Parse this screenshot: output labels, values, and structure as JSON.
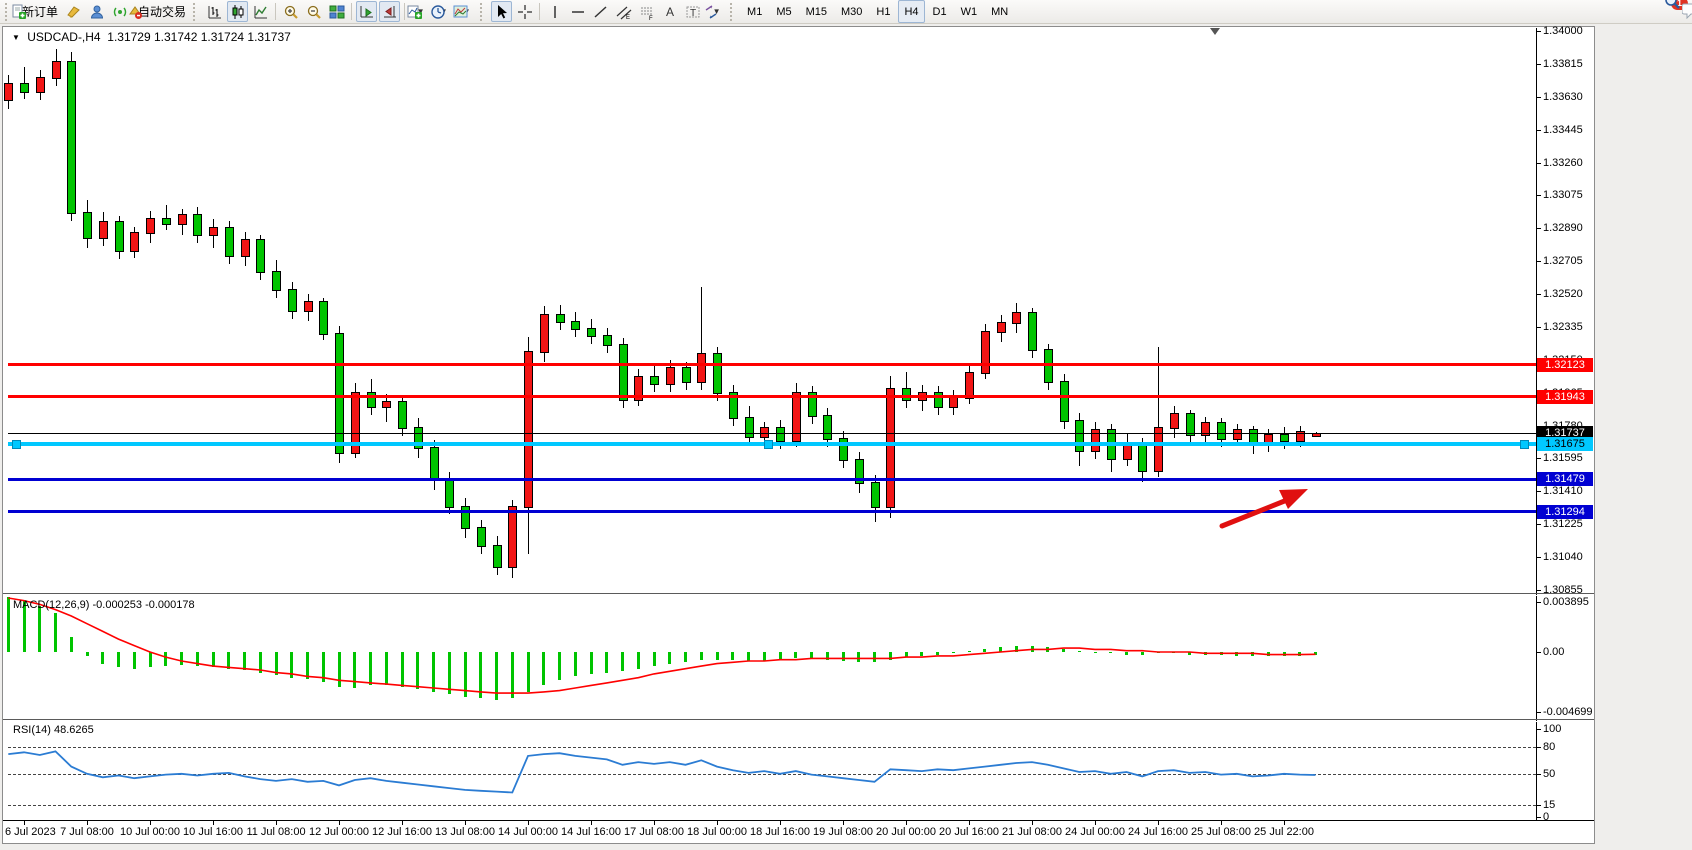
{
  "toolbar": {
    "new_order_label": "新订单",
    "auto_trading_label": "自动交易",
    "timeframes": [
      "M1",
      "M5",
      "M15",
      "M30",
      "H1",
      "H4",
      "D1",
      "W1",
      "MN"
    ],
    "active_timeframe": "H4",
    "notification_badge": "1"
  },
  "chart_data": {
    "type": "candlestick",
    "symbol": "USDCAD-",
    "period": "H4",
    "title": {
      "symbol_period": "USDCAD-,H4",
      "ohlc": "1.31729 1.31742 1.31724 1.31737"
    },
    "open": "1.31729",
    "high": "1.31742",
    "low": "1.31724",
    "close": "1.31737",
    "colors": {
      "bull": "#f21515",
      "bear": "#00c400",
      "wick": "#000000",
      "macd_hist": "#00c400",
      "macd_signal": "#ff0000",
      "rsi_line": "#2b7cd3"
    },
    "price_axis_ticks": [
      "1.34000",
      "1.33815",
      "1.33630",
      "1.33445",
      "1.33260",
      "1.33075",
      "1.32890",
      "1.32705",
      "1.32520",
      "1.32335",
      "1.32150",
      "1.31965",
      "1.31780",
      "1.31595",
      "1.31410",
      "1.31225",
      "1.31040",
      "1.30855"
    ],
    "price_lines": [
      {
        "value": 1.32123,
        "label": "1.32123",
        "color": "#ff0000",
        "thickness": 3,
        "label_bg": "#ff0000",
        "label_fg": "#ffffff",
        "name": "resistance-line-upper"
      },
      {
        "value": 1.31943,
        "label": "1.31943",
        "color": "#ff0000",
        "thickness": 3,
        "label_bg": "#ff0000",
        "label_fg": "#ffffff",
        "name": "resistance-line-lower"
      },
      {
        "value": 1.31737,
        "label": "1.31737",
        "color": "#000000",
        "thickness": 1,
        "label_bg": "#000000",
        "label_fg": "#ffffff",
        "name": "current-price-line"
      },
      {
        "value": 1.31675,
        "label": "1.31675",
        "color": "#00c8ff",
        "thickness": 4,
        "label_bg": "#00c8ff",
        "label_fg": "#000000",
        "selected": true,
        "name": "selected-cyan-line"
      },
      {
        "value": 1.31479,
        "label": "1.31479",
        "color": "#0000d2",
        "thickness": 3,
        "label_bg": "#0000d2",
        "label_fg": "#ffffff",
        "name": "support-line-upper"
      },
      {
        "value": 1.31294,
        "label": "1.31294",
        "color": "#0000d2",
        "thickness": 3,
        "label_bg": "#0000d2",
        "label_fg": "#ffffff",
        "name": "support-line-lower"
      }
    ],
    "time_labels": [
      "6 Jul 2023",
      "7 Jul 08:00",
      "10 Jul 00:00",
      "10 Jul 16:00",
      "11 Jul 08:00",
      "12 Jul 00:00",
      "12 Jul 16:00",
      "13 Jul 08:00",
      "14 Jul 00:00",
      "14 Jul 16:00",
      "17 Jul 08:00",
      "18 Jul 00:00",
      "18 Jul 16:00",
      "19 Jul 08:00",
      "20 Jul 00:00",
      "20 Jul 16:00",
      "21 Jul 08:00",
      "24 Jul 00:00",
      "24 Jul 16:00",
      "25 Jul 08:00",
      "25 Jul 22:00"
    ],
    "candles": [
      [
        1.3362,
        1.3375,
        1.3356,
        1.3371
      ],
      [
        1.3371,
        1.338,
        1.3362,
        1.3366
      ],
      [
        1.3366,
        1.3378,
        1.3361,
        1.3374
      ],
      [
        1.3374,
        1.339,
        1.3369,
        1.3383
      ],
      [
        1.3383,
        1.3388,
        1.3293,
        1.3298
      ],
      [
        1.3298,
        1.3305,
        1.3278,
        1.3284
      ],
      [
        1.3284,
        1.3298,
        1.3279,
        1.3293
      ],
      [
        1.3293,
        1.3296,
        1.3272,
        1.3277
      ],
      [
        1.3277,
        1.329,
        1.3272,
        1.3287
      ],
      [
        1.3287,
        1.3299,
        1.3281,
        1.3295
      ],
      [
        1.3295,
        1.3302,
        1.3288,
        1.3292
      ],
      [
        1.3292,
        1.33,
        1.3285,
        1.3297
      ],
      [
        1.3297,
        1.3301,
        1.3281,
        1.3286
      ],
      [
        1.3286,
        1.3294,
        1.3278,
        1.329
      ],
      [
        1.329,
        1.3293,
        1.3269,
        1.3274
      ],
      [
        1.3274,
        1.3287,
        1.3268,
        1.3283
      ],
      [
        1.3283,
        1.3285,
        1.326,
        1.3265
      ],
      [
        1.3265,
        1.3271,
        1.325,
        1.3255
      ],
      [
        1.3255,
        1.3259,
        1.3238,
        1.3243
      ],
      [
        1.3243,
        1.3252,
        1.3237,
        1.3248
      ],
      [
        1.3248,
        1.325,
        1.3226,
        1.323
      ],
      [
        1.323,
        1.3234,
        1.3157,
        1.3163
      ],
      [
        1.3163,
        1.3202,
        1.316,
        1.3197
      ],
      [
        1.3197,
        1.3204,
        1.3184,
        1.3189
      ],
      [
        1.3189,
        1.3196,
        1.318,
        1.3192
      ],
      [
        1.3192,
        1.3194,
        1.3172,
        1.3177
      ],
      [
        1.3177,
        1.3182,
        1.316,
        1.3166
      ],
      [
        1.3166,
        1.317,
        1.3142,
        1.3148
      ],
      [
        1.3148,
        1.3152,
        1.3128,
        1.3133
      ],
      [
        1.3133,
        1.3137,
        1.3115,
        1.3121
      ],
      [
        1.3121,
        1.3125,
        1.3106,
        1.3111
      ],
      [
        1.3111,
        1.3116,
        1.3094,
        1.3099
      ],
      [
        1.3099,
        1.3136,
        1.3092,
        1.3133
      ],
      [
        1.3133,
        1.3228,
        1.3106,
        1.322
      ],
      [
        1.322,
        1.3245,
        1.3214,
        1.3241
      ],
      [
        1.3241,
        1.3246,
        1.3232,
        1.3237
      ],
      [
        1.3237,
        1.3242,
        1.3228,
        1.3233
      ],
      [
        1.3233,
        1.3238,
        1.3224,
        1.3229
      ],
      [
        1.3229,
        1.3233,
        1.3219,
        1.3224
      ],
      [
        1.3224,
        1.3227,
        1.3188,
        1.3193
      ],
      [
        1.3193,
        1.321,
        1.3189,
        1.3206
      ],
      [
        1.3206,
        1.3213,
        1.3197,
        1.3202
      ],
      [
        1.3202,
        1.3215,
        1.3197,
        1.3211
      ],
      [
        1.3211,
        1.3214,
        1.3198,
        1.3203
      ],
      [
        1.3203,
        1.3256,
        1.3198,
        1.3219
      ],
      [
        1.3219,
        1.3222,
        1.3192,
        1.3197
      ],
      [
        1.3197,
        1.3201,
        1.3178,
        1.3183
      ],
      [
        1.3183,
        1.3189,
        1.3167,
        1.3172
      ],
      [
        1.3172,
        1.318,
        1.3166,
        1.3177
      ],
      [
        1.3177,
        1.3181,
        1.3165,
        1.317
      ],
      [
        1.317,
        1.3202,
        1.3166,
        1.3197
      ],
      [
        1.3197,
        1.32,
        1.3179,
        1.3184
      ],
      [
        1.3184,
        1.3188,
        1.3166,
        1.3171
      ],
      [
        1.3171,
        1.3175,
        1.3154,
        1.3159
      ],
      [
        1.3159,
        1.3163,
        1.314,
        1.3146
      ],
      [
        1.3146,
        1.315,
        1.3124,
        1.3133
      ],
      [
        1.3133,
        1.3206,
        1.3126,
        1.3199
      ],
      [
        1.3199,
        1.3208,
        1.3188,
        1.3193
      ],
      [
        1.3193,
        1.3201,
        1.3186,
        1.3197
      ],
      [
        1.3197,
        1.32,
        1.3184,
        1.3189
      ],
      [
        1.3189,
        1.3198,
        1.3184,
        1.3194
      ],
      [
        1.3194,
        1.3212,
        1.319,
        1.3208
      ],
      [
        1.3208,
        1.3235,
        1.3204,
        1.3231
      ],
      [
        1.3231,
        1.324,
        1.3225,
        1.3236
      ],
      [
        1.3236,
        1.3247,
        1.323,
        1.3242
      ],
      [
        1.3242,
        1.3244,
        1.3216,
        1.3221
      ],
      [
        1.3221,
        1.3224,
        1.3198,
        1.3203
      ],
      [
        1.3203,
        1.3207,
        1.3176,
        1.3181
      ],
      [
        1.3181,
        1.3185,
        1.3155,
        1.3164
      ],
      [
        1.3164,
        1.318,
        1.3159,
        1.3176
      ],
      [
        1.3176,
        1.3179,
        1.3152,
        1.316
      ],
      [
        1.316,
        1.3173,
        1.3155,
        1.3169
      ],
      [
        1.3169,
        1.3171,
        1.3146,
        1.3153
      ],
      [
        1.3153,
        1.3222,
        1.3149,
        1.3177
      ],
      [
        1.3177,
        1.3189,
        1.3171,
        1.3185
      ],
      [
        1.3185,
        1.3187,
        1.3168,
        1.3173
      ],
      [
        1.3173,
        1.3183,
        1.3169,
        1.318
      ],
      [
        1.318,
        1.3182,
        1.3166,
        1.3171
      ],
      [
        1.3171,
        1.3179,
        1.3167,
        1.3176
      ],
      [
        1.3176,
        1.3178,
        1.3162,
        1.3168
      ],
      [
        1.3168,
        1.3176,
        1.3163,
        1.3173
      ],
      [
        1.3173,
        1.3177,
        1.3165,
        1.317
      ],
      [
        1.317,
        1.3178,
        1.3166,
        1.3175
      ],
      [
        1.31729,
        1.31742,
        1.31724,
        1.31737
      ]
    ],
    "macd": {
      "label": "MACD(12,26,9)",
      "current": "-0.000253 -0.000178",
      "ticks": [
        "0.003895",
        "0.00",
        "-0.004699"
      ],
      "histogram": [
        0.0043,
        0.004,
        0.0036,
        0.003,
        0.0012,
        -0.0003,
        -0.0009,
        -0.0012,
        -0.0013,
        -0.0012,
        -0.0011,
        -0.001,
        -0.0011,
        -0.0012,
        -0.0013,
        -0.0014,
        -0.0016,
        -0.0018,
        -0.002,
        -0.0021,
        -0.0023,
        -0.0027,
        -0.0028,
        -0.0026,
        -0.0026,
        -0.0027,
        -0.0029,
        -0.0031,
        -0.0033,
        -0.0035,
        -0.0036,
        -0.0037,
        -0.0036,
        -0.0031,
        -0.0026,
        -0.0022,
        -0.0019,
        -0.0017,
        -0.0016,
        -0.0015,
        -0.0013,
        -0.0011,
        -0.0009,
        -0.0008,
        -0.0006,
        -0.0006,
        -0.0006,
        -0.0007,
        -0.0007,
        -0.0006,
        -0.0005,
        -0.0005,
        -0.0006,
        -0.0007,
        -0.0008,
        -0.0008,
        -0.0006,
        -0.0004,
        -0.0003,
        -0.0002,
        -0.0001,
        0.0001,
        0.0002,
        0.0004,
        0.0005,
        0.0005,
        0.0004,
        0.0002,
        0.0001,
        -0.0001,
        -0.0001,
        -0.0002,
        -0.0002,
        -0.0001,
        -0.0001,
        -0.0002,
        -0.0002,
        -0.0002,
        -0.0003,
        -0.0003,
        -0.0003,
        -0.0003,
        -0.0003,
        -0.00025
      ],
      "signal": [
        0.0042,
        0.004,
        0.0037,
        0.0033,
        0.0028,
        0.0022,
        0.0016,
        0.001,
        0.0005,
        0.0,
        -0.0004,
        -0.0007,
        -0.0009,
        -0.0011,
        -0.0012,
        -0.0013,
        -0.0014,
        -0.0016,
        -0.0017,
        -0.0019,
        -0.002,
        -0.0022,
        -0.0023,
        -0.0024,
        -0.0025,
        -0.0026,
        -0.0027,
        -0.0028,
        -0.0029,
        -0.003,
        -0.0031,
        -0.0032,
        -0.0032,
        -0.0032,
        -0.0031,
        -0.003,
        -0.0028,
        -0.0026,
        -0.0024,
        -0.0022,
        -0.002,
        -0.0017,
        -0.0015,
        -0.0013,
        -0.0011,
        -0.0009,
        -0.0008,
        -0.0007,
        -0.0007,
        -0.0006,
        -0.0006,
        -0.0005,
        -0.0005,
        -0.0005,
        -0.0005,
        -0.0005,
        -0.0005,
        -0.0004,
        -0.0004,
        -0.0003,
        -0.0003,
        -0.0002,
        -0.0001,
        0.0,
        0.0001,
        0.0002,
        0.0002,
        0.0003,
        0.0003,
        0.0002,
        0.0002,
        0.0001,
        0.0001,
        0.0,
        0.0,
        0.0,
        -0.0001,
        -0.0001,
        -0.0001,
        -0.0001,
        -0.0002,
        -0.0002,
        -0.0002,
        -0.000178
      ]
    },
    "rsi": {
      "label": "RSI(14)",
      "current": "48.6265",
      "ticks": [
        "100",
        "80",
        "50",
        "15",
        "0"
      ],
      "levels": [
        80,
        50,
        15
      ],
      "series": [
        72,
        74,
        71,
        75,
        58,
        50,
        46,
        48,
        45,
        47,
        49,
        50,
        48,
        50,
        51,
        47,
        44,
        42,
        44,
        41,
        42,
        37,
        43,
        45,
        42,
        40,
        38,
        36,
        34,
        32,
        31,
        30,
        29,
        70,
        72,
        73,
        70,
        68,
        66,
        60,
        63,
        61,
        63,
        60,
        65,
        58,
        54,
        51,
        53,
        50,
        53,
        49,
        47,
        45,
        43,
        41,
        55,
        54,
        53,
        55,
        54,
        56,
        58,
        60,
        62,
        63,
        60,
        56,
        52,
        53,
        50,
        52,
        47,
        53,
        54,
        51,
        52,
        49,
        50,
        47,
        48,
        50,
        49,
        48.6
      ]
    },
    "annotations": {
      "arrow": {
        "type": "arrow",
        "color": "#e01010",
        "direction": "up-right"
      }
    }
  }
}
